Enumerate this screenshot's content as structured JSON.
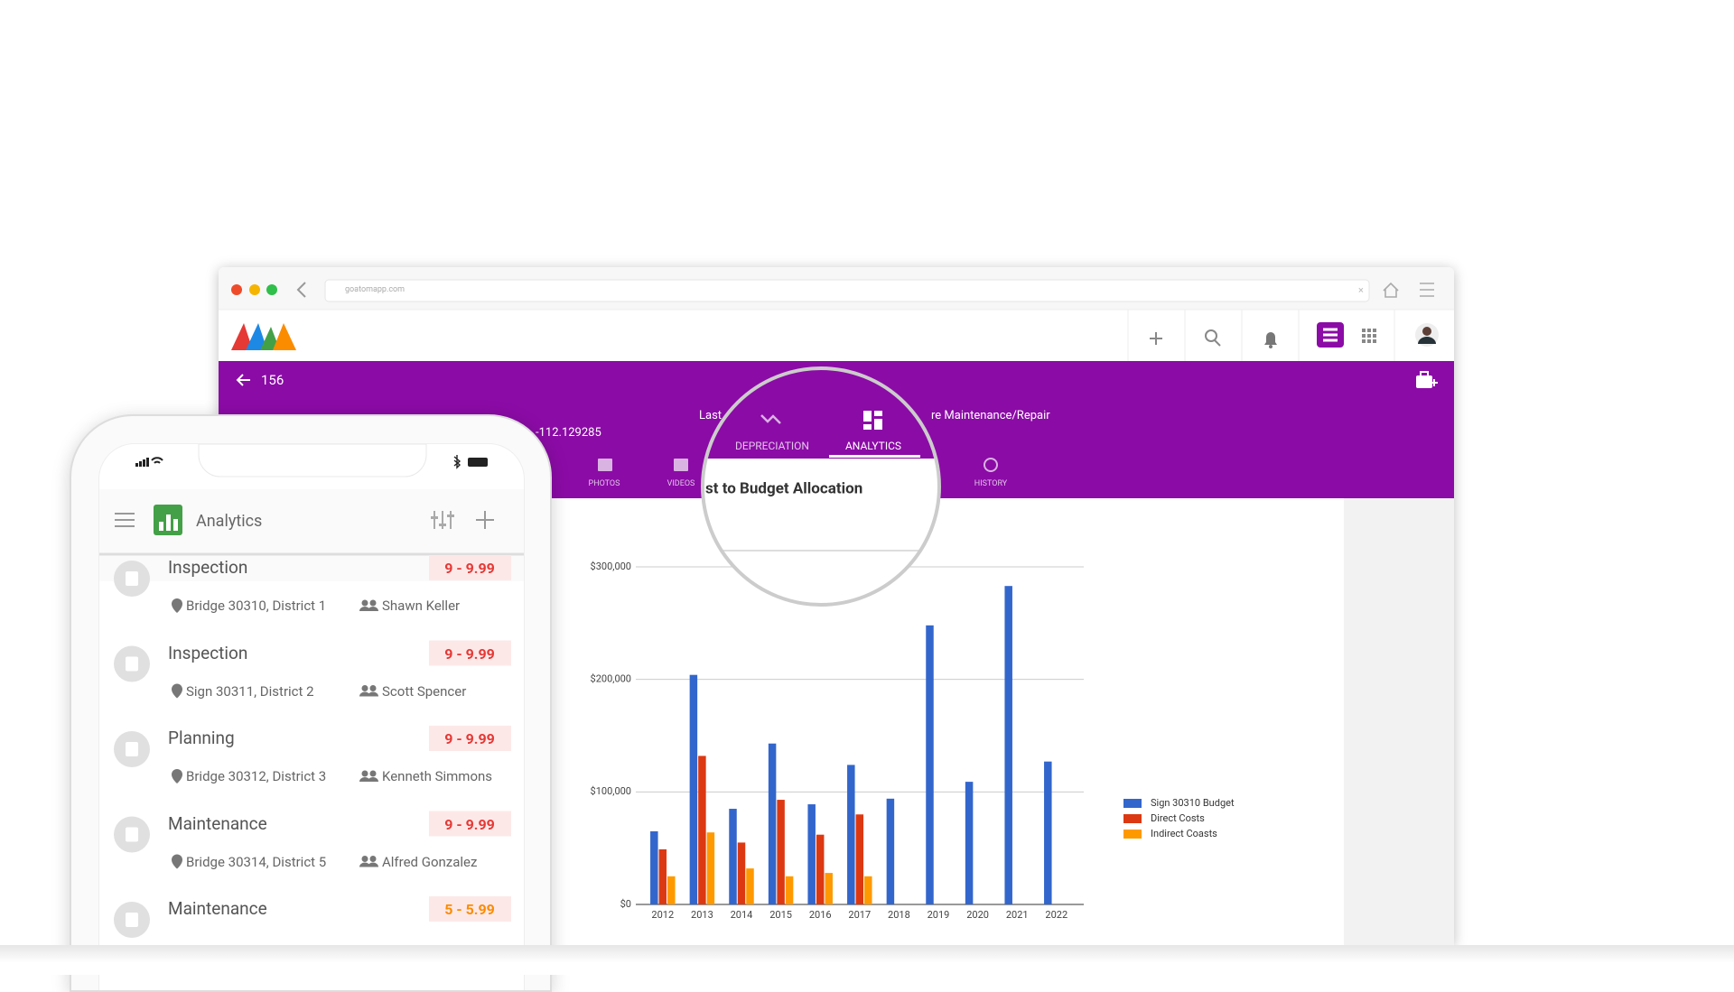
{
  "browser": {
    "url": "goatomapp.com"
  },
  "header": {
    "asset_id": "156",
    "coordinate": "-112.129285",
    "label_fragment": "Last",
    "category_fragment": "re Maintenance/Repair",
    "tabs": [
      "PHOTOS",
      "VIDEOS",
      "HISTORY"
    ]
  },
  "magnifier": {
    "tabs": [
      "DEPRECIATION",
      "ANALYTICS"
    ],
    "active_tab": "ANALYTICS",
    "heading": "st to Budget Allocation"
  },
  "chart_data": {
    "type": "bar",
    "categories": [
      "2012",
      "2013",
      "2014",
      "2015",
      "2016",
      "2017",
      "2018",
      "2019",
      "2020",
      "2021",
      "2022"
    ],
    "series": [
      {
        "name": "Sign 30310 Budget",
        "color": "#3366cc",
        "values": [
          65000,
          204000,
          85000,
          143000,
          89000,
          124000,
          94000,
          248000,
          109000,
          283000,
          127000
        ]
      },
      {
        "name": "Direct Costs",
        "color": "#dc3912",
        "values": [
          49000,
          132000,
          55000,
          93000,
          62000,
          80000,
          null,
          null,
          null,
          null,
          null
        ]
      },
      {
        "name": "Indirect Coasts",
        "color": "#ff9900",
        "values": [
          25000,
          64000,
          32000,
          25000,
          28000,
          25000,
          null,
          null,
          null,
          null,
          null
        ]
      }
    ],
    "ylim": [
      0,
      300000
    ],
    "yticks": [
      {
        "value": 0,
        "label": "$0"
      },
      {
        "value": 100000,
        "label": "$100,000"
      },
      {
        "value": 200000,
        "label": "$200,000"
      },
      {
        "value": 300000,
        "label": "$300,000"
      }
    ],
    "grid": true,
    "legend": "right"
  },
  "phone": {
    "title": "Analytics",
    "items": [
      {
        "title": "Inspection",
        "badge": "9 - 9.99",
        "badge_color": "#e53935",
        "location": "Bridge 30310, District 1",
        "person": "Shawn Keller"
      },
      {
        "title": "Inspection",
        "badge": "9 - 9.99",
        "badge_color": "#e53935",
        "location": "Sign 30311, District 2",
        "person": "Scott Spencer"
      },
      {
        "title": "Planning",
        "badge": "9 - 9.99",
        "badge_color": "#e53935",
        "location": "Bridge 30312, District 3",
        "person": "Kenneth Simmons"
      },
      {
        "title": "Maintenance",
        "badge": "9 - 9.99",
        "badge_color": "#e53935",
        "location": "Bridge 30314, District 5",
        "person": "Alfred Gonzalez"
      },
      {
        "title": "Maintenance",
        "badge": "5 - 5.99",
        "badge_color": "#fb8c00"
      }
    ]
  }
}
